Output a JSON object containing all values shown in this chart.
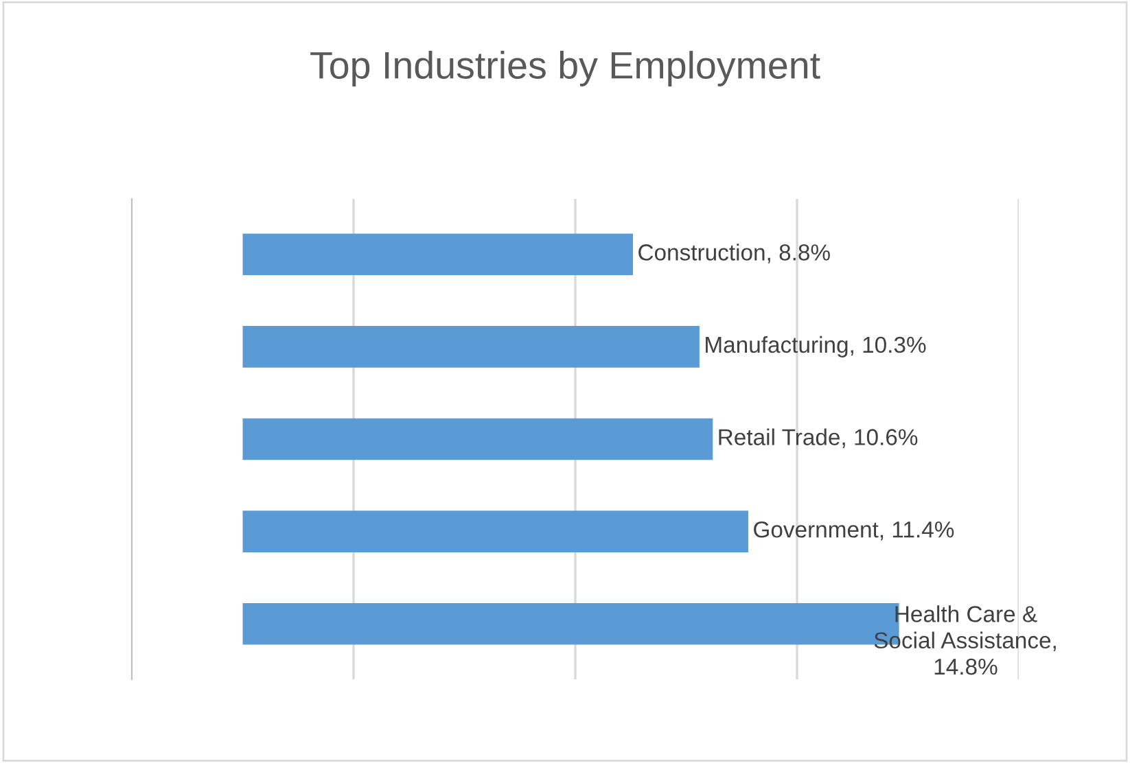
{
  "chart_data": {
    "type": "bar",
    "orientation": "horizontal",
    "title": "Top Industries by Employment",
    "categories": [
      null,
      null,
      null,
      null,
      null
    ],
    "values": [
      8.8,
      10.3,
      10.6,
      11.4,
      14.8
    ],
    "value_labels": [
      "Construction, 8.8%",
      "Manufacturing, 10.3%",
      "Retail Trade, 10.6%",
      "Government, 11.4%",
      "Health Care &\nSocial Assistance,\n14.8%"
    ],
    "color": "#5b9bd5",
    "xlim": [
      -2.5,
      17.5
    ],
    "xticks": [
      {
        "value": 2.5,
        "label": null
      },
      {
        "value": 7.5,
        "label": null
      },
      {
        "value": 12.5,
        "label": null
      },
      {
        "value": 17.5,
        "label": null
      }
    ],
    "grid": "x",
    "legend": false
  }
}
